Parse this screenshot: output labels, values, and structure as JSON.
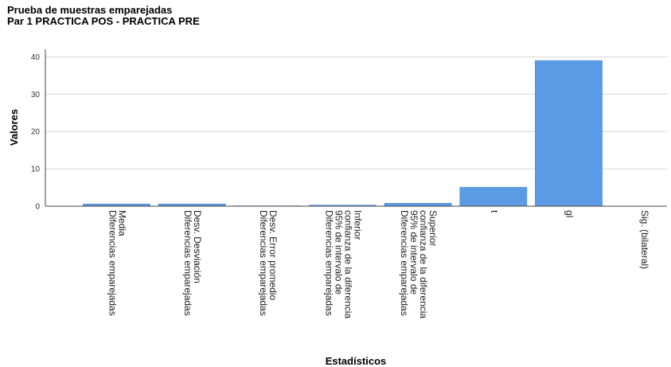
{
  "chart_data": {
    "type": "bar",
    "title": "Prueba de muestras emparejadas",
    "subtitle": "Par 1 PRACTICA POS - PRACTICA PRE",
    "xlabel": "Estadísticos",
    "ylabel": "Valores",
    "ylim": [
      0,
      42
    ],
    "yticks": [
      0,
      10,
      20,
      30,
      40
    ],
    "grid": true,
    "bar_color": "#5b9be5",
    "categories": [
      [
        "Diferencias emparejadas",
        "Media"
      ],
      [
        "Diferencias emparejadas",
        "Desv. Desviación"
      ],
      [
        "Diferencias emparejadas",
        "Desv. Error promedio"
      ],
      [
        "Diferencias emparejadas",
        "95% de intervalo de",
        "confianza de la diferencia",
        "Inferior"
      ],
      [
        "Diferencias emparejadas",
        "95% de intervalo de",
        "confianza de la diferencia",
        "Superior"
      ],
      [
        "t"
      ],
      [
        "gl"
      ],
      [
        "Sig. (bilateral)"
      ]
    ],
    "values": [
      0.6,
      0.6,
      0.1,
      0.3,
      0.8,
      5.1,
      39,
      0.0
    ]
  }
}
